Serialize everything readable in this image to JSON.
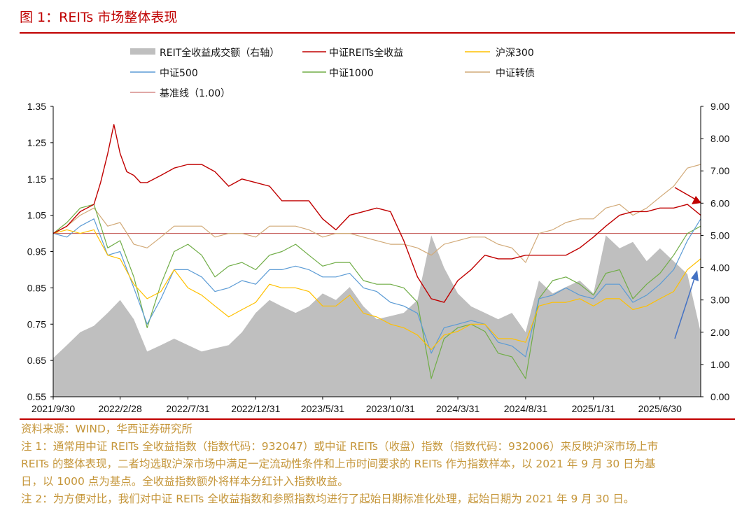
{
  "figure": {
    "title": "图 1：REITs 市场整体表现"
  },
  "colors": {
    "accent": "#c00000",
    "volume": "#bfbfbf",
    "reits": "#c00000",
    "hs300": "#ffc000",
    "zz500": "#5b9bd5",
    "zz1000": "#70ad47",
    "convertible": "#d2aa78",
    "baseline": "#c0504d",
    "note_text": "#c5963a"
  },
  "chart_data": {
    "type": "line",
    "x_ticks": [
      "2021/9/30",
      "2022/2/28",
      "2022/7/31",
      "2022/12/31",
      "2023/5/31",
      "2023/10/31",
      "2024/3/31",
      "2024/8/31",
      "2025/1/31",
      "2025/6/30"
    ],
    "x_range": [
      "2021-09-30",
      "2025-09-30"
    ],
    "ylim_left": [
      0.55,
      1.35
    ],
    "y_ticks_left": [
      "1.35",
      "1.25",
      "1.15",
      "1.05",
      "0.95",
      "0.85",
      "0.75",
      "0.65",
      "0.55"
    ],
    "ylim_right": [
      0,
      9
    ],
    "y_ticks_right": [
      "9.00",
      "8.00",
      "7.00",
      "6.00",
      "5.00",
      "4.00",
      "3.00",
      "2.00",
      "1.00",
      "0.00"
    ],
    "legend": [
      {
        "label": "REIT全收益成交额（右轴）",
        "key": "volume",
        "style": "area"
      },
      {
        "label": "中证REITs全收益",
        "key": "reits",
        "style": "line"
      },
      {
        "label": "沪深300",
        "key": "hs300",
        "style": "line"
      },
      {
        "label": "中证500",
        "key": "zz500",
        "style": "line"
      },
      {
        "label": "中证1000",
        "key": "zz1000",
        "style": "line"
      },
      {
        "label": "中证转债",
        "key": "convertible",
        "style": "line"
      },
      {
        "label": "基准线（1.00）",
        "key": "baseline",
        "style": "line"
      }
    ],
    "baseline": 1.0,
    "series": [
      {
        "key": "reits",
        "name": "中证REITs全收益",
        "axis": "left",
        "x": [
          "2021-09-30",
          "2021-10-31",
          "2021-11-30",
          "2021-12-31",
          "2022-01-15",
          "2022-01-31",
          "2022-02-14",
          "2022-02-28",
          "2022-03-15",
          "2022-03-31",
          "2022-04-15",
          "2022-04-30",
          "2022-05-31",
          "2022-06-30",
          "2022-07-31",
          "2022-08-31",
          "2022-09-30",
          "2022-10-31",
          "2022-11-30",
          "2022-12-31",
          "2023-01-31",
          "2023-02-28",
          "2023-03-31",
          "2023-04-30",
          "2023-05-31",
          "2023-06-30",
          "2023-07-31",
          "2023-08-31",
          "2023-09-30",
          "2023-10-31",
          "2023-11-30",
          "2023-12-31",
          "2024-01-31",
          "2024-02-29",
          "2024-03-31",
          "2024-04-30",
          "2024-05-31",
          "2024-06-30",
          "2024-07-31",
          "2024-08-31",
          "2024-09-30",
          "2024-10-31",
          "2024-11-30",
          "2024-12-31",
          "2025-01-31",
          "2025-02-28",
          "2025-03-31",
          "2025-04-30",
          "2025-05-31",
          "2025-06-30",
          "2025-07-31",
          "2025-08-31",
          "2025-09-30"
        ],
        "y": [
          1.0,
          1.02,
          1.06,
          1.08,
          1.14,
          1.22,
          1.3,
          1.22,
          1.17,
          1.16,
          1.14,
          1.14,
          1.16,
          1.18,
          1.19,
          1.19,
          1.17,
          1.13,
          1.15,
          1.14,
          1.13,
          1.09,
          1.09,
          1.09,
          1.04,
          1.01,
          1.05,
          1.06,
          1.07,
          1.06,
          0.98,
          0.88,
          0.82,
          0.81,
          0.87,
          0.9,
          0.94,
          0.93,
          0.93,
          0.94,
          0.94,
          0.94,
          0.94,
          0.96,
          0.99,
          1.02,
          1.05,
          1.06,
          1.06,
          1.07,
          1.07,
          1.08,
          1.05
        ]
      },
      {
        "key": "hs300",
        "name": "沪深300",
        "axis": "left",
        "x": [
          "2021-09-30",
          "2021-10-31",
          "2021-11-30",
          "2021-12-31",
          "2022-01-31",
          "2022-02-28",
          "2022-03-31",
          "2022-04-30",
          "2022-05-31",
          "2022-06-30",
          "2022-07-31",
          "2022-08-31",
          "2022-09-30",
          "2022-10-31",
          "2022-11-30",
          "2022-12-31",
          "2023-01-31",
          "2023-02-28",
          "2023-03-31",
          "2023-04-30",
          "2023-05-31",
          "2023-06-30",
          "2023-07-31",
          "2023-08-31",
          "2023-09-30",
          "2023-10-31",
          "2023-11-30",
          "2023-12-31",
          "2024-01-31",
          "2024-02-29",
          "2024-03-31",
          "2024-04-30",
          "2024-05-31",
          "2024-06-30",
          "2024-07-31",
          "2024-08-31",
          "2024-09-30",
          "2024-10-31",
          "2024-11-30",
          "2024-12-31",
          "2025-01-31",
          "2025-02-28",
          "2025-03-31",
          "2025-04-30",
          "2025-05-31",
          "2025-06-30",
          "2025-07-31",
          "2025-08-31",
          "2025-09-30"
        ],
        "y": [
          1.0,
          1.01,
          1.0,
          1.01,
          0.94,
          0.93,
          0.86,
          0.82,
          0.84,
          0.9,
          0.85,
          0.83,
          0.8,
          0.77,
          0.79,
          0.81,
          0.86,
          0.85,
          0.85,
          0.84,
          0.8,
          0.8,
          0.83,
          0.78,
          0.77,
          0.75,
          0.74,
          0.72,
          0.68,
          0.72,
          0.73,
          0.75,
          0.75,
          0.71,
          0.71,
          0.7,
          0.8,
          0.81,
          0.81,
          0.82,
          0.8,
          0.82,
          0.82,
          0.79,
          0.8,
          0.82,
          0.84,
          0.9,
          0.93
        ]
      },
      {
        "key": "zz500",
        "name": "中证500",
        "axis": "left",
        "x": [
          "2021-09-30",
          "2021-10-31",
          "2021-11-30",
          "2021-12-31",
          "2022-01-31",
          "2022-02-28",
          "2022-03-31",
          "2022-04-30",
          "2022-05-31",
          "2022-06-30",
          "2022-07-31",
          "2022-08-31",
          "2022-09-30",
          "2022-10-31",
          "2022-11-30",
          "2022-12-31",
          "2023-01-31",
          "2023-02-28",
          "2023-03-31",
          "2023-04-30",
          "2023-05-31",
          "2023-06-30",
          "2023-07-31",
          "2023-08-31",
          "2023-09-30",
          "2023-10-31",
          "2023-11-30",
          "2023-12-31",
          "2024-01-31",
          "2024-02-29",
          "2024-03-31",
          "2024-04-30",
          "2024-05-31",
          "2024-06-30",
          "2024-07-31",
          "2024-08-31",
          "2024-09-30",
          "2024-10-31",
          "2024-11-30",
          "2024-12-31",
          "2025-01-31",
          "2025-02-28",
          "2025-03-31",
          "2025-04-30",
          "2025-05-31",
          "2025-06-30",
          "2025-07-31",
          "2025-08-31",
          "2025-09-30"
        ],
        "y": [
          1.0,
          0.99,
          1.02,
          1.04,
          0.94,
          0.95,
          0.85,
          0.75,
          0.82,
          0.9,
          0.9,
          0.88,
          0.84,
          0.85,
          0.87,
          0.86,
          0.9,
          0.9,
          0.91,
          0.9,
          0.88,
          0.88,
          0.89,
          0.85,
          0.84,
          0.81,
          0.8,
          0.78,
          0.67,
          0.74,
          0.75,
          0.76,
          0.75,
          0.7,
          0.69,
          0.66,
          0.82,
          0.83,
          0.85,
          0.83,
          0.82,
          0.86,
          0.86,
          0.81,
          0.83,
          0.86,
          0.9,
          0.98,
          1.04
        ]
      },
      {
        "key": "zz1000",
        "name": "中证1000",
        "axis": "left",
        "x": [
          "2021-09-30",
          "2021-10-31",
          "2021-11-30",
          "2021-12-31",
          "2022-01-31",
          "2022-02-28",
          "2022-03-31",
          "2022-04-30",
          "2022-05-31",
          "2022-06-30",
          "2022-07-31",
          "2022-08-31",
          "2022-09-30",
          "2022-10-31",
          "2022-11-30",
          "2022-12-31",
          "2023-01-31",
          "2023-02-28",
          "2023-03-31",
          "2023-04-30",
          "2023-05-31",
          "2023-06-30",
          "2023-07-31",
          "2023-08-31",
          "2023-09-30",
          "2023-10-31",
          "2023-11-30",
          "2023-12-31",
          "2024-01-31",
          "2024-02-29",
          "2024-03-31",
          "2024-04-30",
          "2024-05-31",
          "2024-06-30",
          "2024-07-31",
          "2024-08-31",
          "2024-09-30",
          "2024-10-31",
          "2024-11-30",
          "2024-12-31",
          "2025-01-31",
          "2025-02-28",
          "2025-03-31",
          "2025-04-30",
          "2025-05-31",
          "2025-06-30",
          "2025-07-31",
          "2025-08-31",
          "2025-09-30"
        ],
        "y": [
          1.0,
          1.03,
          1.07,
          1.08,
          0.96,
          0.98,
          0.88,
          0.74,
          0.86,
          0.95,
          0.97,
          0.94,
          0.88,
          0.91,
          0.92,
          0.9,
          0.94,
          0.95,
          0.97,
          0.94,
          0.91,
          0.92,
          0.92,
          0.87,
          0.86,
          0.86,
          0.85,
          0.81,
          0.6,
          0.71,
          0.74,
          0.75,
          0.73,
          0.67,
          0.66,
          0.6,
          0.82,
          0.87,
          0.88,
          0.86,
          0.83,
          0.89,
          0.9,
          0.82,
          0.86,
          0.89,
          0.94,
          1.0,
          1.02
        ]
      },
      {
        "key": "convertible",
        "name": "中证转债",
        "axis": "left",
        "x": [
          "2021-09-30",
          "2021-10-31",
          "2021-11-30",
          "2021-12-31",
          "2022-01-31",
          "2022-02-28",
          "2022-03-31",
          "2022-04-30",
          "2022-05-31",
          "2022-06-30",
          "2022-07-31",
          "2022-08-31",
          "2022-09-30",
          "2022-10-31",
          "2022-11-30",
          "2022-12-31",
          "2023-01-31",
          "2023-02-28",
          "2023-03-31",
          "2023-04-30",
          "2023-05-31",
          "2023-06-30",
          "2023-07-31",
          "2023-08-31",
          "2023-09-30",
          "2023-10-31",
          "2023-11-30",
          "2023-12-31",
          "2024-01-31",
          "2024-02-29",
          "2024-03-31",
          "2024-04-30",
          "2024-05-31",
          "2024-06-30",
          "2024-07-31",
          "2024-08-31",
          "2024-09-30",
          "2024-10-31",
          "2024-11-30",
          "2024-12-31",
          "2025-01-31",
          "2025-02-28",
          "2025-03-31",
          "2025-04-30",
          "2025-05-31",
          "2025-06-30",
          "2025-07-31",
          "2025-08-31",
          "2025-09-30"
        ],
        "y": [
          1.0,
          1.02,
          1.05,
          1.07,
          1.02,
          1.03,
          0.97,
          0.96,
          0.99,
          1.02,
          1.02,
          1.02,
          0.99,
          1.0,
          1.0,
          0.99,
          1.02,
          1.02,
          1.02,
          1.01,
          0.99,
          1.0,
          1.0,
          0.99,
          0.98,
          0.97,
          0.97,
          0.96,
          0.94,
          0.97,
          0.98,
          0.99,
          0.99,
          0.97,
          0.96,
          0.92,
          1.0,
          1.01,
          1.03,
          1.04,
          1.04,
          1.07,
          1.08,
          1.05,
          1.07,
          1.1,
          1.13,
          1.18,
          1.19
        ]
      }
    ],
    "volume_right_axis": {
      "x": [
        "2021-09-30",
        "2021-10-31",
        "2021-11-30",
        "2021-12-31",
        "2022-01-31",
        "2022-02-28",
        "2022-03-31",
        "2022-04-30",
        "2022-05-31",
        "2022-06-30",
        "2022-07-31",
        "2022-08-31",
        "2022-09-30",
        "2022-10-31",
        "2022-11-30",
        "2022-12-31",
        "2023-01-31",
        "2023-02-28",
        "2023-03-31",
        "2023-04-30",
        "2023-05-31",
        "2023-06-30",
        "2023-07-31",
        "2023-08-31",
        "2023-09-30",
        "2023-10-31",
        "2023-11-30",
        "2023-12-31",
        "2024-01-31",
        "2024-02-29",
        "2024-03-31",
        "2024-04-30",
        "2024-05-31",
        "2024-06-30",
        "2024-07-31",
        "2024-08-31",
        "2024-09-30",
        "2024-10-31",
        "2024-11-30",
        "2024-12-31",
        "2025-01-31",
        "2025-02-28",
        "2025-03-31",
        "2025-04-30",
        "2025-05-31",
        "2025-06-30",
        "2025-07-31",
        "2025-08-31",
        "2025-09-30"
      ],
      "y": [
        1.2,
        1.6,
        2.0,
        2.2,
        2.6,
        3.0,
        2.4,
        1.4,
        1.6,
        1.8,
        1.6,
        1.4,
        1.5,
        1.6,
        2.0,
        2.6,
        3.0,
        2.8,
        2.6,
        2.8,
        3.2,
        3.0,
        3.4,
        2.8,
        2.4,
        2.5,
        2.6,
        3.0,
        5.0,
        4.0,
        3.2,
        2.8,
        2.6,
        2.4,
        2.6,
        2.0,
        3.6,
        3.2,
        3.4,
        3.6,
        3.2,
        5.0,
        4.6,
        4.8,
        4.2,
        4.6,
        4.2,
        3.8,
        2.0
      ]
    },
    "annotations": [
      {
        "type": "arrow",
        "color": "#c00000",
        "direction": "down-right",
        "near": "中证REITs全收益 end"
      },
      {
        "type": "arrow",
        "color": "#4472c4",
        "direction": "up-right",
        "near": "中证500 end"
      }
    ]
  },
  "notes": {
    "source": "资料来源：WIND，华西证券研究所",
    "note1_line1": "注 1：通常用中证 REITs 全收益指数（指数代码：932047）或中证 REITs（收盘）指数（指数代码：932006）来反映沪深市场上市",
    "note1_line2": "REITs 的整体表现，二者均选取沪深市场中满足一定流动性条件和上市时间要求的 REITs 作为指数样本，以 2021 年 9 月 30 日为基",
    "note1_line3": "日，以 1000 点为基点。全收益指数额外将样本分红计入指数收益。",
    "note2": "注 2：为方便对比，我们对中证 REITs 全收益指数和参照指数均进行了起始日期标准化处理，起始日期为 2021 年 9 月 30 日。"
  }
}
